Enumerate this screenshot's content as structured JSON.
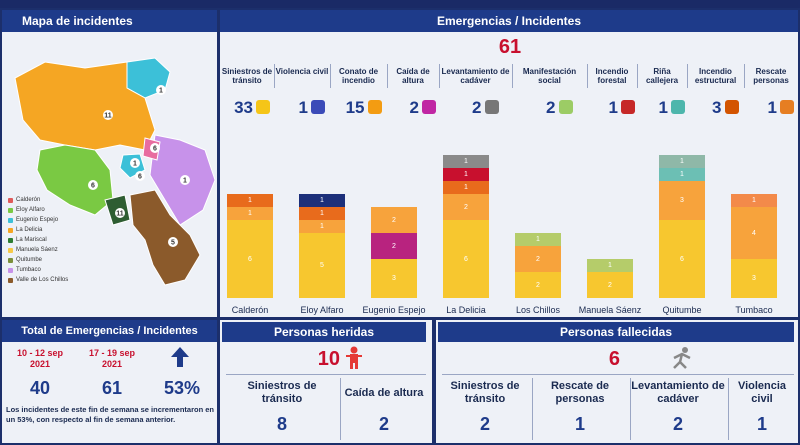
{
  "map_panel": {
    "title": "Mapa de incidentes",
    "legend": [
      {
        "label": "Calderón",
        "color": "#e05a5a"
      },
      {
        "label": "Eloy Alfaro",
        "color": "#7ac943"
      },
      {
        "label": "Eugenio Espejo",
        "color": "#3cc0d8"
      },
      {
        "label": "La Delicia",
        "color": "#f5a623"
      },
      {
        "label": "La Mariscal",
        "color": "#2e7d32"
      },
      {
        "label": "Manuela Sáenz",
        "color": "#f7c948"
      },
      {
        "label": "Quitumbe",
        "color": "#7b8f3a"
      },
      {
        "label": "Tumbaco",
        "color": "#c792ea"
      },
      {
        "label": "Valle de Los Chillos",
        "color": "#8b5a2b"
      }
    ],
    "region_counts": [
      "1",
      "11",
      "6",
      "1",
      "6",
      "6",
      "1",
      "11",
      "5"
    ]
  },
  "emergencies": {
    "title": "Emergencias / Incidentes",
    "total": "61",
    "categories": [
      {
        "label": "Siniestros de tránsito",
        "count": "33",
        "icon": "car-crash-icon",
        "color": "#f5c518"
      },
      {
        "label": "Violencia civil",
        "count": "1",
        "icon": "fight-icon",
        "color": "#3b4bb8"
      },
      {
        "label": "Conato de incendio",
        "count": "15",
        "icon": "small-fire-icon",
        "color": "#f39c12"
      },
      {
        "label": "Caída de altura",
        "count": "2",
        "icon": "falling-person-icon",
        "color": "#c026a3"
      },
      {
        "label": "Levantamiento de cadáver",
        "count": "2",
        "icon": "body-icon",
        "color": "#777777"
      },
      {
        "label": "Manifestación social",
        "count": "2",
        "icon": "protest-icon",
        "color": "#9ccc65"
      },
      {
        "label": "Incendio forestal",
        "count": "1",
        "icon": "forest-fire-icon",
        "color": "#c62828"
      },
      {
        "label": "Riña callejera",
        "count": "1",
        "icon": "brawl-icon",
        "color": "#4db6ac"
      },
      {
        "label": "Incendio estructural",
        "count": "3",
        "icon": "house-fire-icon",
        "color": "#d35400"
      },
      {
        "label": "Rescate personas",
        "count": "1",
        "icon": "rescue-icon",
        "color": "#e67e22"
      }
    ]
  },
  "chart_data": {
    "type": "bar",
    "stacked": true,
    "categories": [
      "Calderón",
      "Eloy Alfaro",
      "Eugenio Espejo",
      "La Delicia",
      "Los Chillos",
      "Manuela Sáenz",
      "Quitumbe",
      "Tumbaco"
    ],
    "stacks": [
      [
        {
          "value": 6,
          "color": "#f7c72f"
        },
        {
          "value": 1,
          "color": "#f7a33c"
        },
        {
          "value": 1,
          "color": "#e86b1c"
        }
      ],
      [
        {
          "value": 5,
          "color": "#f7c72f"
        },
        {
          "value": 1,
          "color": "#f7a33c"
        },
        {
          "value": 1,
          "color": "#e86b1c"
        },
        {
          "value": 1,
          "color": "#1c2f7a"
        }
      ],
      [
        {
          "value": 3,
          "color": "#f7c72f"
        },
        {
          "value": 2,
          "color": "#b8237f"
        },
        {
          "value": 2,
          "color": "#f7a33c"
        }
      ],
      [
        {
          "value": 6,
          "color": "#f7c72f"
        },
        {
          "value": 2,
          "color": "#f7a33c"
        },
        {
          "value": 1,
          "color": "#e86b1c"
        },
        {
          "value": 1,
          "color": "#c8102e"
        },
        {
          "value": 1,
          "color": "#8a8a8a"
        }
      ],
      [
        {
          "value": 2,
          "color": "#f7c72f"
        },
        {
          "value": 2,
          "color": "#f7a33c"
        },
        {
          "value": 1,
          "color": "#b5cc6a"
        }
      ],
      [
        {
          "value": 2,
          "color": "#f7c72f"
        },
        {
          "value": 1,
          "color": "#b5cc6a"
        }
      ],
      [
        {
          "value": 6,
          "color": "#f7c72f"
        },
        {
          "value": 3,
          "color": "#f7a33c"
        },
        {
          "value": 1,
          "color": "#6cbfb4"
        },
        {
          "value": 1,
          "color": "#8fb8a8"
        }
      ],
      [
        {
          "value": 3,
          "color": "#f7c72f"
        },
        {
          "value": 4,
          "color": "#f7a33c"
        },
        {
          "value": 1,
          "color": "#f38a4a"
        }
      ]
    ]
  },
  "totals_panel": {
    "title": "Total de Emergencias / Incidentes",
    "period1": "10 - 12 sep 2021",
    "period2": "17 - 19 sep 2021",
    "value1": "40",
    "value2": "61",
    "change": "53%",
    "note": "Los incidentes de este fin de semana se incrementaron en un 53%, con respecto al fin de semana anterior."
  },
  "injured": {
    "title": "Personas heridas",
    "total": "10",
    "items": [
      {
        "label": "Siniestros de tránsito",
        "value": "8"
      },
      {
        "label": "Caída de altura",
        "value": "2"
      }
    ]
  },
  "deceased": {
    "title": "Personas fallecidas",
    "total": "6",
    "items": [
      {
        "label": "Siniestros de tránsito",
        "value": "2"
      },
      {
        "label": "Rescate de personas",
        "value": "1"
      },
      {
        "label": "Levantamiento de cadáver",
        "value": "2"
      },
      {
        "label": "Violencia civil",
        "value": "1"
      }
    ]
  }
}
